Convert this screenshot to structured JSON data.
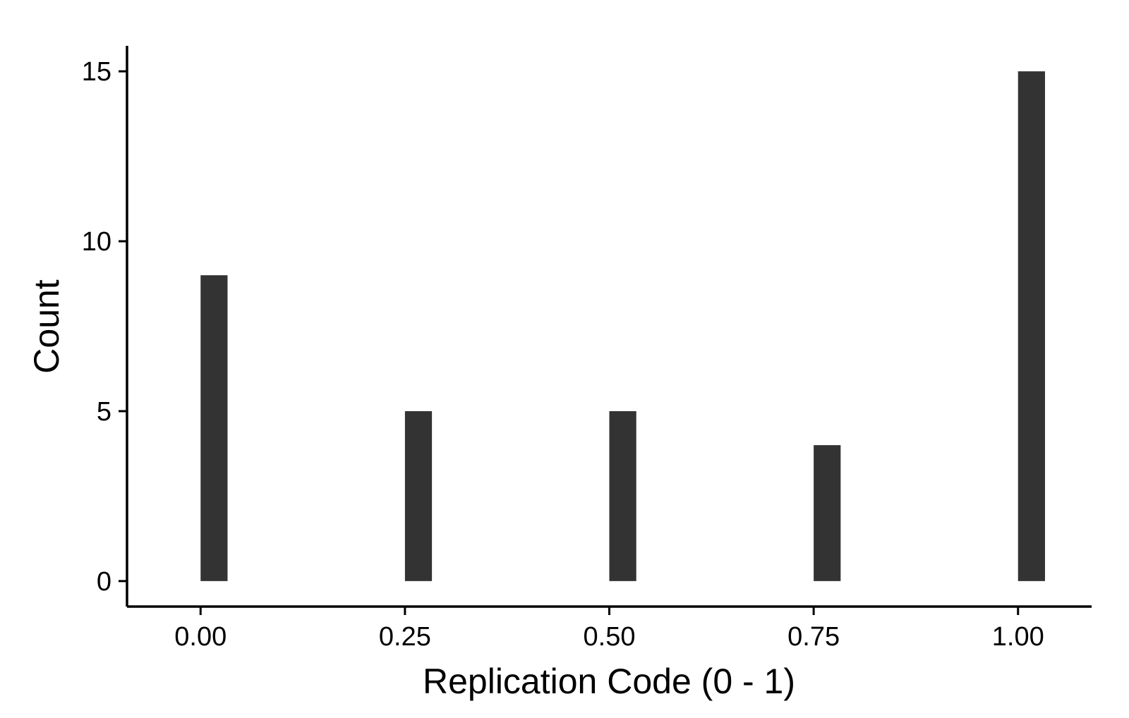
{
  "chart_data": {
    "type": "bar",
    "x": [
      0.0,
      0.25,
      0.5,
      0.75,
      1.0
    ],
    "values": [
      9,
      5,
      5,
      4,
      15
    ],
    "xticks": [
      0.0,
      0.25,
      0.5,
      0.75,
      1.0
    ],
    "xtick_labels": [
      "0.00",
      "0.25",
      "0.50",
      "0.75",
      "1.00"
    ],
    "yticks": [
      0,
      5,
      10,
      15
    ],
    "ytick_labels": [
      "0",
      "5",
      "10",
      "15"
    ],
    "xlabel": "Replication Code (0 - 1)",
    "ylabel": "Count",
    "xlim": [
      -0.09,
      1.09
    ],
    "ylim": [
      -0.75,
      15.75
    ],
    "bar_width": 0.033,
    "bar_color": "#333333",
    "grid": false,
    "legend": "none"
  }
}
